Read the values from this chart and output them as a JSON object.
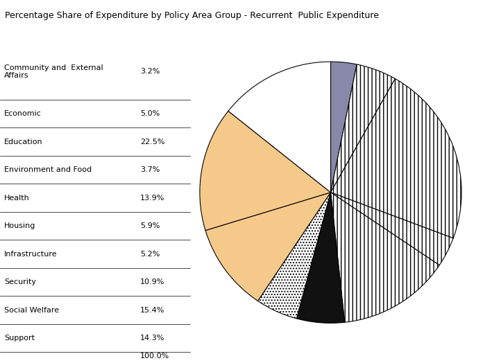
{
  "title": "Percentage Share of Expenditure by Policy Area Group - Recurrent  Public Expenditure",
  "labels": [
    "Community and  External\nAffairs",
    "Economic",
    "Education",
    "Environment and Food",
    "Health",
    "Housing",
    "Infrastructure",
    "Security",
    "Social Welfare",
    "Support"
  ],
  "pct_labels": [
    "3.2%",
    "5.0%",
    "22.5%",
    "3.7%",
    "13.9%",
    "5.9%",
    "5.2%",
    "10.9%",
    "15.4%",
    "14.3%"
  ],
  "total_label": "100.0%",
  "values": [
    3.2,
    5.0,
    22.5,
    3.7,
    13.9,
    5.9,
    5.2,
    10.9,
    15.4,
    14.3
  ],
  "slice_styles": [
    {
      "facecolor": "#8080a0",
      "edgecolor": "black",
      "hatch": ""
    },
    {
      "facecolor": "white",
      "edgecolor": "black",
      "hatch": "|||"
    },
    {
      "facecolor": "white",
      "edgecolor": "black",
      "hatch": "|||"
    },
    {
      "facecolor": "white",
      "edgecolor": "black",
      "hatch": "|||"
    },
    {
      "facecolor": "white",
      "edgecolor": "black",
      "hatch": "|||"
    },
    {
      "facecolor": "#111111",
      "edgecolor": "black",
      "hatch": ""
    },
    {
      "facecolor": "white",
      "edgecolor": "black",
      "hatch": "...."
    },
    {
      "facecolor": "#f5c98a",
      "edgecolor": "black",
      "hatch": ""
    },
    {
      "facecolor": "#f5c98a",
      "edgecolor": "black",
      "hatch": ""
    },
    {
      "facecolor": "white",
      "edgecolor": "black",
      "hatch": "...."
    }
  ],
  "right_large_styles": [
    {
      "facecolor": "white",
      "edgecolor": "black",
      "hatch": "...."
    },
    {
      "facecolor": "white",
      "edgecolor": "black",
      "hatch": "##"
    }
  ],
  "startangle": 90,
  "background_color": "#ffffff",
  "title_fontsize": 9,
  "label_fontsize": 8,
  "pct_fontsize": 8
}
